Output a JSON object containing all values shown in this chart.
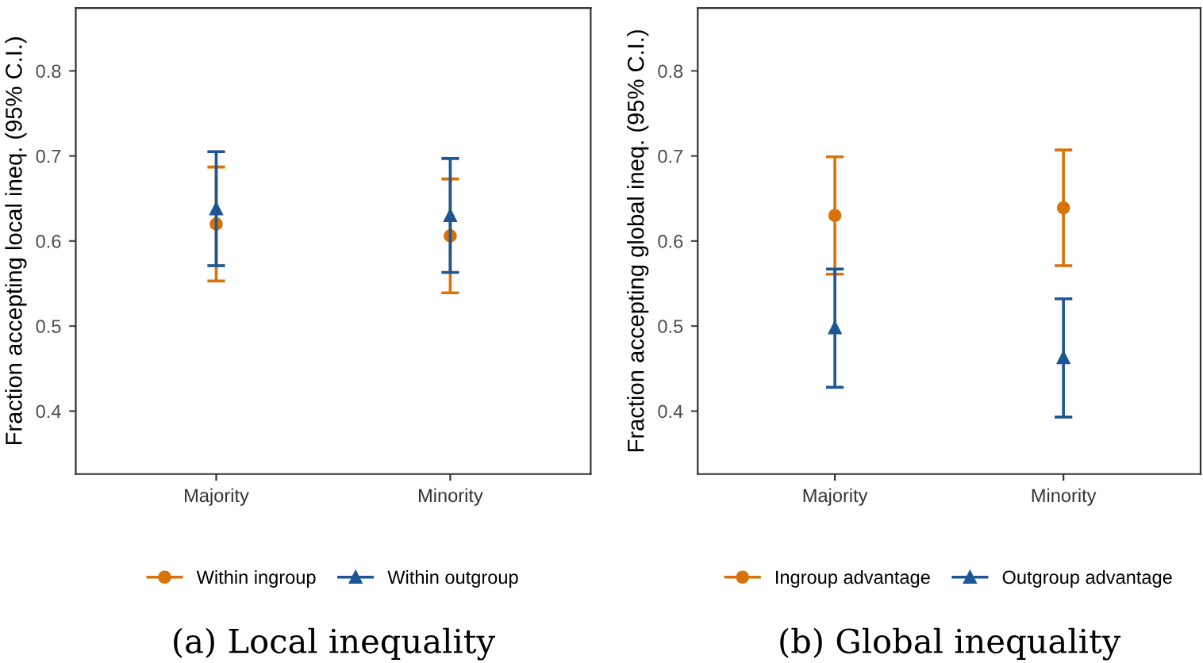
{
  "chart_data": [
    {
      "type": "scatter",
      "title": "(a) Local inequality",
      "ylabel": "Fraction accepting local ineq. (95% C.I.)",
      "categories": [
        "Majority",
        "Minority"
      ],
      "ylim": [
        0.326,
        0.874
      ],
      "yticks": [
        0.4,
        0.5,
        0.6,
        0.7,
        0.8
      ],
      "grid": false,
      "legend": "bottom",
      "series": [
        {
          "name": "Within ingroup",
          "color": "#d8720a",
          "marker": "circle",
          "values": [
            0.62,
            0.606
          ],
          "errors": [
            [
              0.553,
              0.687
            ],
            [
              0.539,
              0.673
            ]
          ]
        },
        {
          "name": "Within outgroup",
          "color": "#1c5694",
          "marker": "triangle",
          "values": [
            0.638,
            0.63
          ],
          "errors": [
            [
              0.571,
              0.705
            ],
            [
              0.563,
              0.697
            ]
          ]
        }
      ]
    },
    {
      "type": "scatter",
      "title": "(b) Global inequality",
      "ylabel": "Fraction accepting global ineq. (95% C.I.)",
      "categories": [
        "Majority",
        "Minority"
      ],
      "ylim": [
        0.326,
        0.874
      ],
      "yticks": [
        0.4,
        0.5,
        0.6,
        0.7,
        0.8
      ],
      "grid": false,
      "legend": "bottom",
      "series": [
        {
          "name": "Ingroup advantage",
          "color": "#d8720a",
          "marker": "circle",
          "values": [
            0.63,
            0.639
          ],
          "errors": [
            [
              0.561,
              0.699
            ],
            [
              0.571,
              0.707
            ]
          ]
        },
        {
          "name": "Outgroup advantage",
          "color": "#1c5694",
          "marker": "triangle",
          "values": [
            0.498,
            0.463
          ],
          "errors": [
            [
              0.428,
              0.567
            ],
            [
              0.393,
              0.532
            ]
          ]
        }
      ]
    }
  ]
}
